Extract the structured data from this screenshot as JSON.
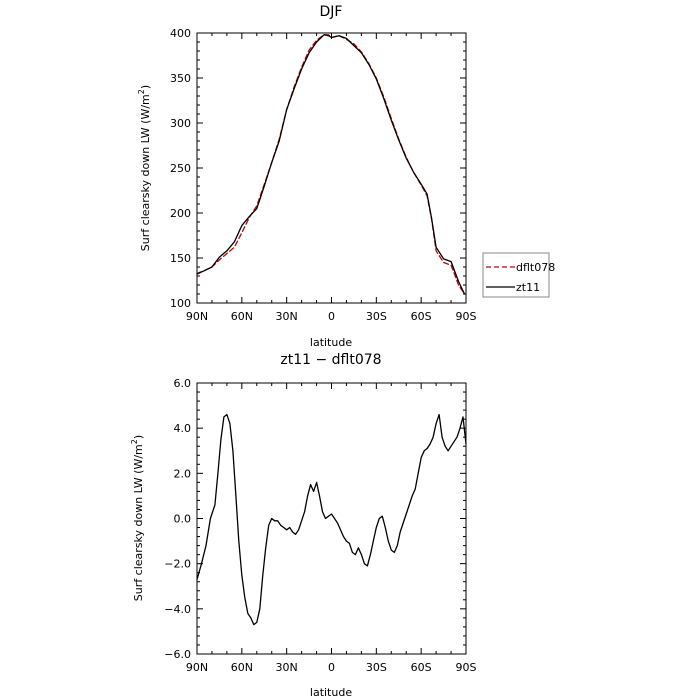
{
  "chart_data": [
    {
      "type": "line",
      "title": "DJF",
      "xlabel": "latitude",
      "ylabel_text": "Surf clearsky down LW (W/m",
      "ylabel_sup": "2",
      "ylabel_close": ")",
      "xlim": [
        90,
        -90
      ],
      "ylim": [
        100,
        400
      ],
      "xticks": [
        90,
        60,
        30,
        0,
        -30,
        -60,
        -90
      ],
      "xtick_labels": [
        "90N",
        "60N",
        "30N",
        "0",
        "30S",
        "60S",
        "90S"
      ],
      "yticks": [
        100,
        150,
        200,
        250,
        300,
        350,
        400
      ],
      "ytick_labels": [
        "100",
        "150",
        "200",
        "250",
        "300",
        "350",
        "400"
      ],
      "legend": {
        "placement": "right",
        "entries": [
          "dflt078",
          "zt11"
        ]
      },
      "series": [
        {
          "name": "dflt078",
          "color": "#cc0000",
          "dash": "dashed",
          "x": [
            90,
            85,
            80,
            75,
            70,
            65,
            60,
            55,
            50,
            45,
            40,
            35,
            30,
            25,
            20,
            15,
            10,
            5,
            2,
            0,
            -5,
            -10,
            -15,
            -20,
            -25,
            -30,
            -35,
            -40,
            -45,
            -50,
            -55,
            -60,
            -64,
            -67,
            -70,
            -75,
            -80,
            -85,
            -89
          ],
          "y": [
            133,
            136,
            140,
            148,
            155,
            162,
            178,
            195,
            208,
            232,
            256,
            282,
            315,
            340,
            362,
            381,
            392,
            398,
            398,
            395,
            397,
            393,
            388,
            379,
            366,
            350,
            329,
            305,
            282,
            262,
            245,
            231,
            219,
            193,
            158,
            145,
            142,
            120,
            110
          ]
        },
        {
          "name": "zt11",
          "color": "#000000",
          "dash": "solid",
          "x": [
            90,
            85,
            80,
            75,
            70,
            65,
            60,
            55,
            50,
            45,
            40,
            35,
            30,
            25,
            20,
            15,
            10,
            5,
            2,
            0,
            -5,
            -10,
            -15,
            -20,
            -25,
            -30,
            -35,
            -40,
            -45,
            -50,
            -55,
            -60,
            -64,
            -67,
            -70,
            -75,
            -80,
            -85,
            -89
          ],
          "y": [
            132,
            136,
            140,
            151,
            158,
            168,
            186,
            196,
            205,
            230,
            256,
            280,
            315,
            338,
            360,
            378,
            390,
            398,
            397,
            395,
            397,
            394,
            386,
            378,
            365,
            349,
            327,
            303,
            281,
            261,
            245,
            232,
            221,
            194,
            162,
            149,
            146,
            124,
            110
          ]
        }
      ]
    },
    {
      "type": "line",
      "title": "zt11 − dflt078",
      "xlabel": "latitude",
      "ylabel_text": "Surf clearsky down LW (W/m",
      "ylabel_sup": "2",
      "ylabel_close": ")",
      "xlim": [
        90,
        -90
      ],
      "ylim": [
        -6,
        6
      ],
      "xticks": [
        90,
        60,
        30,
        0,
        -30,
        -60,
        -90
      ],
      "xtick_labels": [
        "90N",
        "60N",
        "30N",
        "0",
        "30S",
        "60S",
        "90S"
      ],
      "yticks": [
        -6,
        -4,
        -2,
        0,
        2,
        4,
        6
      ],
      "ytick_labels": [
        "−6.0",
        "−4.0",
        "−2.0",
        "0.0",
        "2.0",
        "4.0",
        "6.0"
      ],
      "series": [
        {
          "name": "zt11 − dflt078",
          "color": "#000000",
          "dash": "solid",
          "x": [
            90,
            87,
            84,
            81,
            78,
            76,
            74,
            72,
            70,
            68,
            66,
            64,
            62,
            60,
            58,
            56,
            54,
            52,
            50,
            48,
            46,
            44,
            42,
            40,
            38,
            36,
            34,
            32,
            30,
            28,
            26,
            24,
            22,
            20,
            18,
            16,
            14,
            12,
            10,
            8,
            6,
            4,
            2,
            0,
            -2,
            -4,
            -6,
            -8,
            -10,
            -12,
            -14,
            -16,
            -18,
            -20,
            -22,
            -24,
            -26,
            -28,
            -30,
            -32,
            -34,
            -36,
            -38,
            -40,
            -42,
            -44,
            -46,
            -48,
            -50,
            -52,
            -54,
            -56,
            -58,
            -60,
            -62,
            -64,
            -66,
            -68,
            -70,
            -72,
            -74,
            -76,
            -78,
            -80,
            -82,
            -84,
            -86,
            -88,
            -90
          ],
          "y": [
            -2.7,
            -2.0,
            -1.2,
            0.0,
            0.6,
            2.0,
            3.5,
            4.5,
            4.6,
            4.2,
            3.0,
            1.0,
            -1.0,
            -2.5,
            -3.5,
            -4.2,
            -4.4,
            -4.7,
            -4.6,
            -4.0,
            -2.5,
            -1.3,
            -0.3,
            0.0,
            -0.1,
            -0.1,
            -0.3,
            -0.4,
            -0.5,
            -0.4,
            -0.6,
            -0.7,
            -0.5,
            -0.1,
            0.3,
            1.0,
            1.5,
            1.2,
            1.6,
            1.0,
            0.3,
            0.0,
            0.1,
            0.2,
            0.0,
            -0.2,
            -0.5,
            -0.8,
            -1.0,
            -1.1,
            -1.5,
            -1.6,
            -1.3,
            -1.6,
            -2.0,
            -2.1,
            -1.6,
            -1.0,
            -0.4,
            0.0,
            0.1,
            -0.4,
            -1.0,
            -1.4,
            -1.5,
            -1.2,
            -0.6,
            -0.2,
            0.2,
            0.6,
            1.0,
            1.3,
            2.0,
            2.7,
            3.0,
            3.1,
            3.3,
            3.6,
            4.2,
            4.6,
            3.6,
            3.2,
            3.0,
            3.2,
            3.4,
            3.6,
            4.0,
            4.5,
            3.3
          ]
        }
      ]
    }
  ]
}
